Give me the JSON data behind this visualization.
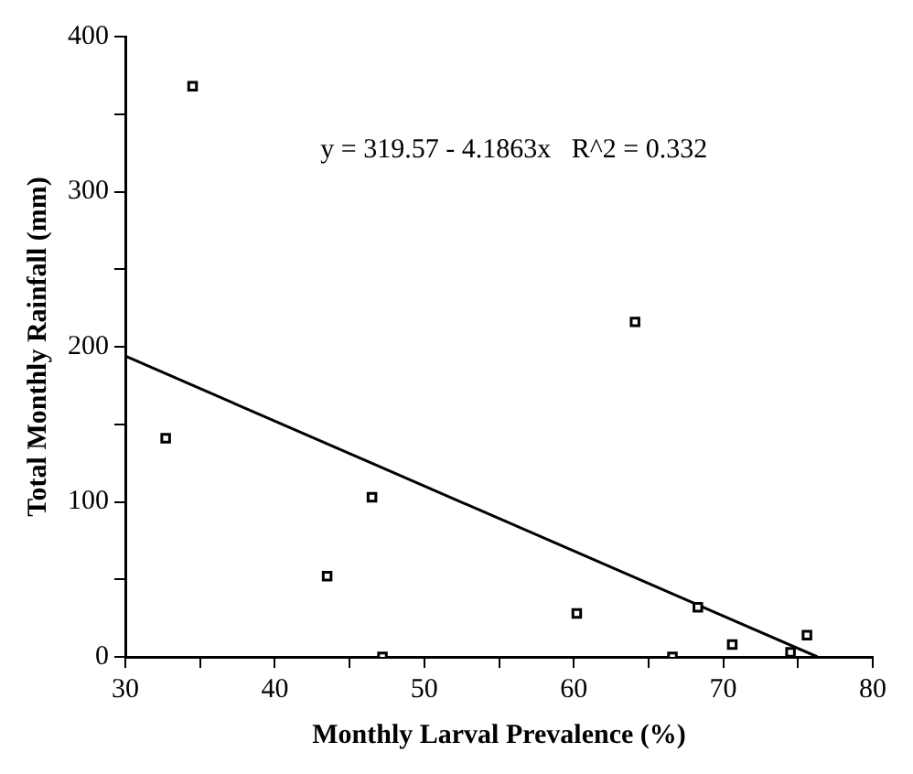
{
  "chart_data": {
    "type": "scatter",
    "xlabel": "Monthly Larval Prevalence (%)",
    "ylabel": "Total Monthly Rainfall (mm)",
    "annotations": [
      "y = 319.57 - 4.1863x   R^2 = 0.332"
    ],
    "series": [
      {
        "type": "scatter",
        "color": "#000000",
        "marker": "square",
        "x": [
          34.5,
          32.7,
          43.5,
          46.5,
          47.2,
          60.2,
          64.1,
          68.3,
          66.6,
          70.6,
          74.5,
          75.6
        ],
        "values": [
          368,
          141,
          52,
          103,
          0,
          28,
          216,
          32,
          0,
          8,
          3,
          14
        ]
      },
      {
        "type": "line",
        "color": "#000000",
        "marker": "none",
        "line_style": "solid",
        "x": [
          30,
          76.3
        ],
        "values": [
          194,
          0
        ]
      }
    ],
    "xlim": [
      30,
      80
    ],
    "xticks": [
      30,
      {
        "value": 35,
        "label": null
      },
      40,
      {
        "value": 45,
        "label": null
      },
      50,
      {
        "value": 55,
        "label": null
      },
      60,
      {
        "value": 65,
        "label": null
      },
      70,
      {
        "value": 75,
        "label": null
      },
      80
    ],
    "ylim": [
      0,
      400
    ],
    "yticks": [
      0,
      {
        "value": 50,
        "label": null
      },
      100,
      {
        "value": 150,
        "label": null
      },
      200,
      {
        "value": 250,
        "label": null
      },
      300,
      {
        "value": 350,
        "label": null
      },
      400
    ],
    "grid": false,
    "legend": false
  }
}
